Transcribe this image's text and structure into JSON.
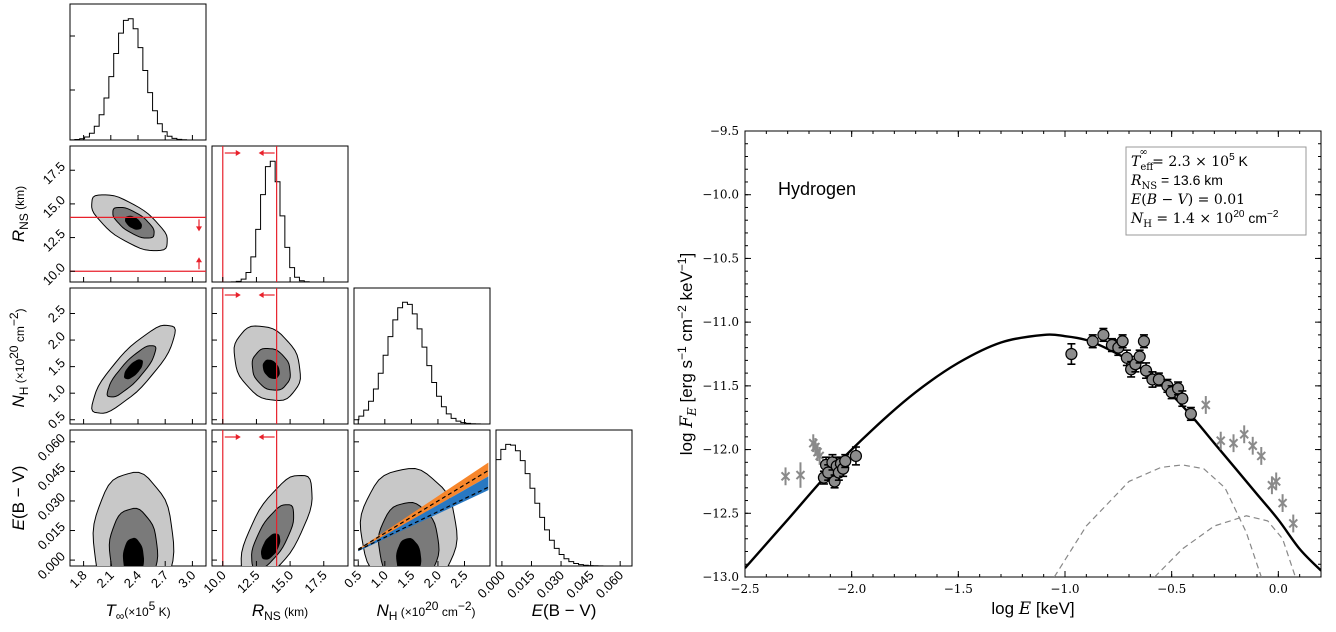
{
  "chart_data": [
    {
      "type": "corner",
      "parameters": [
        {
          "label": "T∞(×10⁵ K)",
          "ticks": [
            "1.8",
            "2.1",
            "2.4",
            "2.7",
            "3.0"
          ],
          "range": [
            1.65,
            3.15
          ]
        },
        {
          "label": "R_NS (km)",
          "ticks": [
            "10.0",
            "12.5",
            "15.0",
            "17.5"
          ],
          "range": [
            9.2,
            19.3
          ]
        },
        {
          "label": "N_H (×10²⁰ cm⁻²)",
          "ticks": [
            "0.5",
            "1.0",
            "1.5",
            "2.0",
            "2.5"
          ],
          "range": [
            0.42,
            2.98
          ]
        },
        {
          "label": "E(B − V)",
          "ticks": [
            "0.000",
            "0.015",
            "0.030",
            "0.045",
            "0.060"
          ],
          "range": [
            -0.003,
            0.066
          ]
        }
      ],
      "marginal_peaks": {
        "T∞": 2.3,
        "R_NS": 13.6,
        "N_H": 1.4,
        "E(B − V)": 0.004
      },
      "red_limits": {
        "R_NS": [
          10.0,
          14.0
        ]
      },
      "annotation_bands": [
        {
          "color": "#f7862b",
          "x": [
            0.5,
            2.95
          ],
          "y": [
            0.0055,
            0.0495
          ]
        },
        {
          "color": "#2878c2",
          "x": [
            0.5,
            2.95
          ],
          "y": [
            0.0055,
            0.0355
          ]
        }
      ]
    },
    {
      "type": "line",
      "xlabel": "log E [keV]",
      "ylabel": "log F_E [erg s⁻¹ cm⁻² keV⁻¹]",
      "xlim": [
        -2.5,
        0.2
      ],
      "ylim": [
        -13.0,
        -9.5
      ],
      "xticks": [
        "−2.5",
        "−2.0",
        "−1.5",
        "−1.0",
        "−0.5",
        "0.0"
      ],
      "yticks": [
        "−9.5",
        "−10.0",
        "−10.5",
        "−11.0",
        "−11.5",
        "−12.0",
        "−12.5",
        "−13.0"
      ],
      "annotation": "Hydrogen",
      "legend": {
        "position": "top-right",
        "lines": [
          "T_eff^∞ = 2.3 × 10⁵ K",
          "R_NS = 13.6 km",
          "E(B − V) = 0.01",
          "N_H = 1.4 × 10²⁰ cm⁻²"
        ]
      },
      "model_curve": {
        "x": [
          -2.5,
          -2.3,
          -2.1,
          -1.9,
          -1.7,
          -1.5,
          -1.3,
          -1.1,
          -1.0,
          -0.9,
          -0.8,
          -0.7,
          -0.6,
          -0.5,
          -0.4,
          -0.3,
          -0.2,
          -0.1,
          0.0,
          0.1,
          0.2
        ],
        "y": [
          -12.93,
          -12.55,
          -12.17,
          -11.84,
          -11.55,
          -11.32,
          -11.16,
          -11.1,
          -11.11,
          -11.14,
          -11.21,
          -11.3,
          -11.42,
          -11.57,
          -11.75,
          -11.95,
          -12.15,
          -12.35,
          -12.55,
          -12.78,
          -12.95
        ]
      },
      "dashed_components": [
        {
          "x": [
            -1.05,
            -0.9,
            -0.7,
            -0.55,
            -0.45,
            -0.35,
            -0.25,
            -0.15,
            -0.08
          ],
          "y": [
            -13.0,
            -12.6,
            -12.25,
            -12.14,
            -12.12,
            -12.15,
            -12.3,
            -12.65,
            -13.0
          ]
        },
        {
          "x": [
            -0.58,
            -0.45,
            -0.3,
            -0.15,
            -0.05,
            0.02,
            0.08
          ],
          "y": [
            -13.0,
            -12.78,
            -12.6,
            -12.52,
            -12.56,
            -12.7,
            -13.0
          ]
        }
      ],
      "photometry_points": {
        "x": [
          -2.13,
          -2.12,
          -2.11,
          -2.09,
          -2.08,
          -2.07,
          -2.06,
          -2.05,
          -2.04,
          -2.03,
          -1.98,
          -0.97,
          -0.87,
          -0.82,
          -0.78,
          -0.75,
          -0.73,
          -0.71,
          -0.69,
          -0.67,
          -0.65,
          -0.63,
          -0.62,
          -0.59,
          -0.56,
          -0.52,
          -0.5,
          -0.47,
          -0.45,
          -0.41
        ],
        "y": [
          -12.22,
          -12.12,
          -12.18,
          -12.1,
          -12.25,
          -12.13,
          -12.18,
          -12.11,
          -12.15,
          -12.09,
          -12.05,
          -11.25,
          -11.15,
          -11.1,
          -11.18,
          -11.2,
          -11.15,
          -11.28,
          -11.37,
          -11.33,
          -11.27,
          -11.15,
          -11.38,
          -11.45,
          -11.45,
          -11.5,
          -11.55,
          -11.52,
          -11.6,
          -11.72
        ],
        "yerr": [
          0.05,
          0.06,
          0.06,
          0.06,
          0.05,
          0.07,
          0.06,
          0.05,
          0.06,
          0.05,
          0.07,
          0.08,
          0.05,
          0.05,
          0.05,
          0.06,
          0.05,
          0.06,
          0.06,
          0.06,
          0.05,
          0.05,
          0.06,
          0.06,
          0.05,
          0.05,
          0.05,
          0.05,
          0.06,
          0.05
        ]
      },
      "grey_points": {
        "x": [
          -2.31,
          -2.24,
          -2.18,
          -2.17,
          -2.16,
          -2.15,
          -0.34,
          -0.27,
          -0.21,
          -0.16,
          -0.12,
          -0.08,
          -0.03,
          -0.01,
          0.02,
          0.07
        ],
        "y": [
          -12.21,
          -12.2,
          -11.95,
          -11.98,
          -12.02,
          -12.05,
          -11.65,
          -11.93,
          -11.95,
          -11.88,
          -11.97,
          -12.05,
          -12.28,
          -12.25,
          -12.42,
          -12.58
        ],
        "yerr": [
          0.07,
          0.1,
          0.07,
          0.07,
          0.07,
          0.07,
          0.07,
          0.07,
          0.07,
          0.07,
          0.07,
          0.07,
          0.07,
          0.07,
          0.07,
          0.07
        ]
      }
    }
  ]
}
